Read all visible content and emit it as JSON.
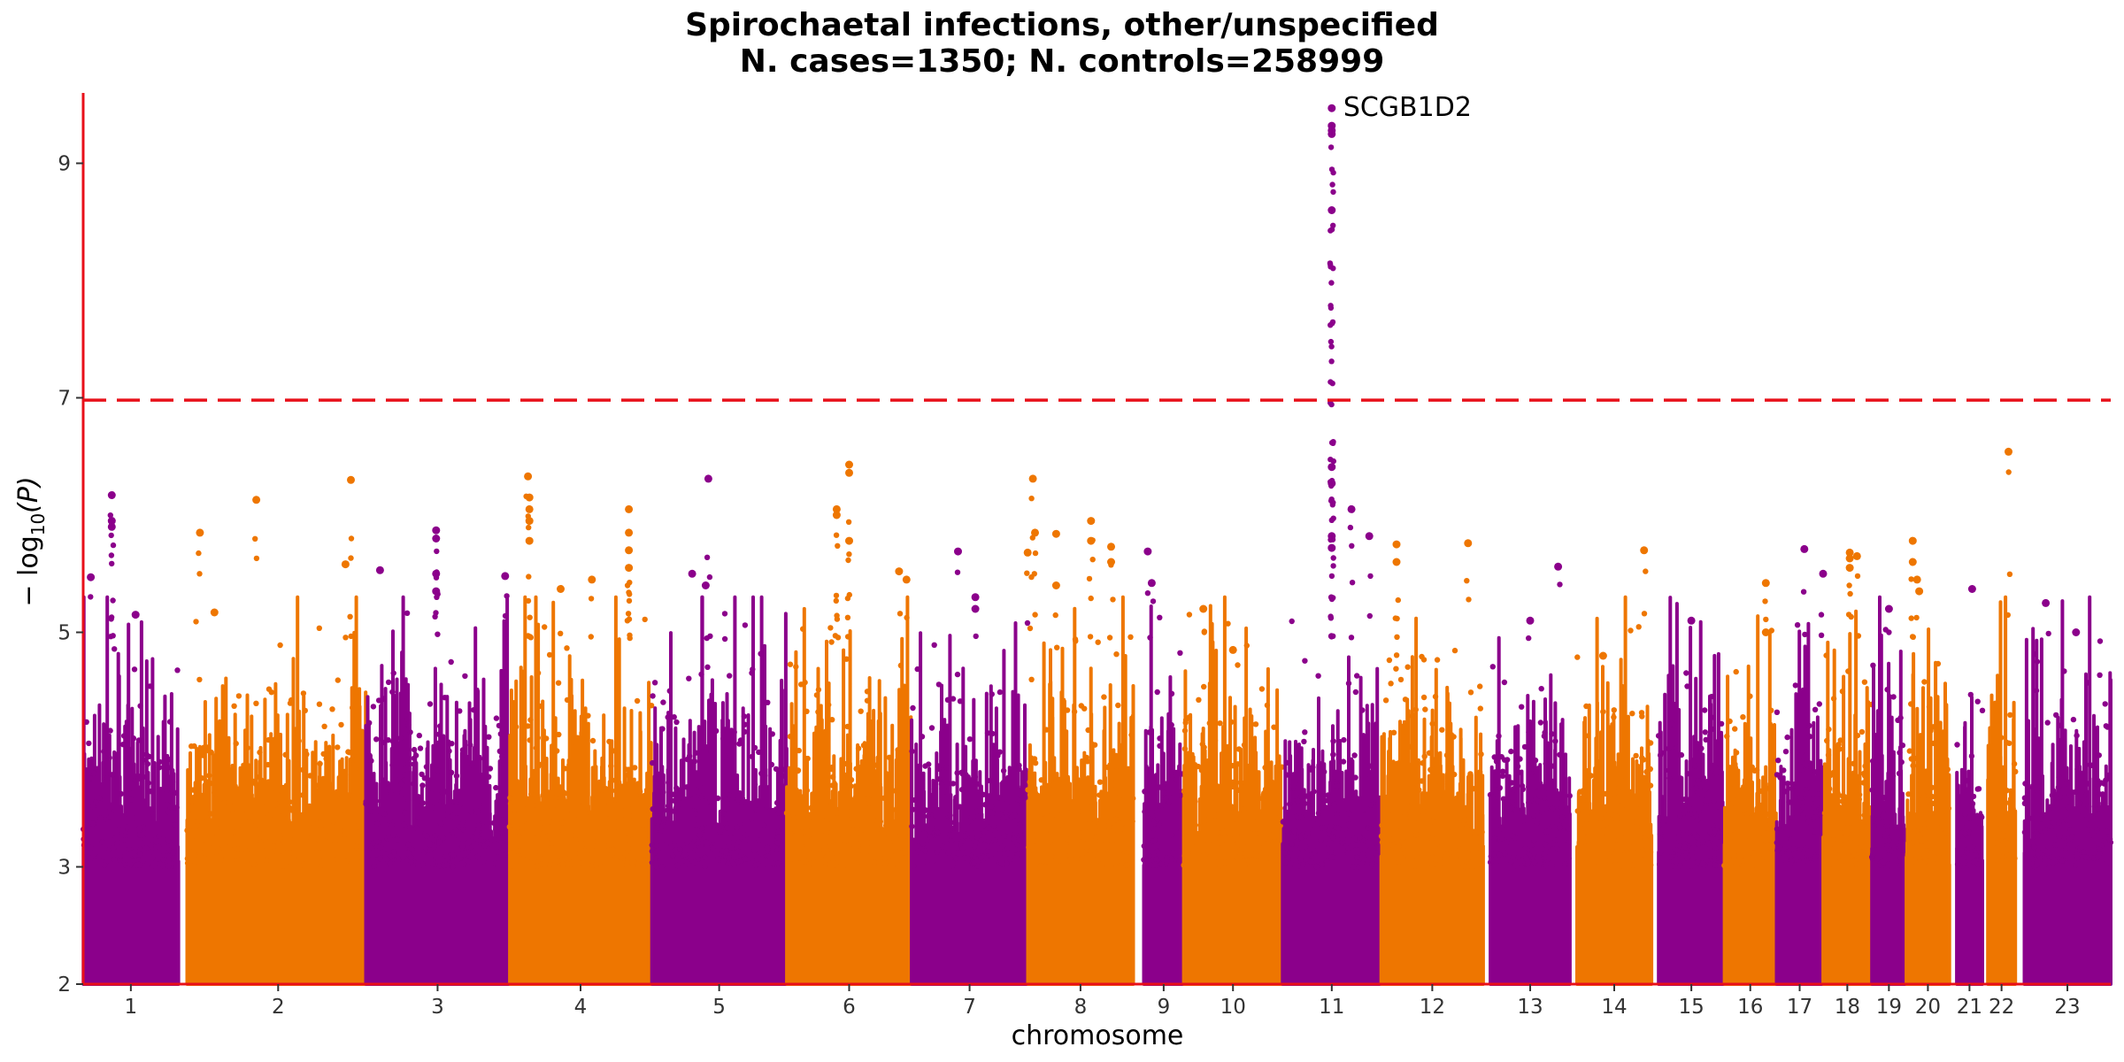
{
  "chart_data": {
    "type": "scatter",
    "title": "Spirochaetal infections, other/unspecified",
    "subtitle": "N. cases=1350; N. controls=258999",
    "xlabel": "chromosome",
    "ylabel_main": "− log",
    "ylabel_sub": "10",
    "ylabel_tail": "(P)",
    "ylim": [
      2,
      9.6
    ],
    "yticks": [
      2,
      3,
      5,
      7,
      9
    ],
    "significance_threshold": 6.98,
    "grid": false,
    "colors": {
      "purple": "#8B008B",
      "orange": "#EE7600",
      "threshold": "#E8101A",
      "axis": "#E8101A"
    },
    "chromosomes": [
      {
        "label": "1",
        "start": 0.0,
        "end": 0.055,
        "color": "purple",
        "peaks": [
          [
            0.3,
            6.17
          ],
          [
            0.3,
            5.95
          ],
          [
            0.3,
            5.9
          ],
          [
            0.08,
            5.47
          ],
          [
            0.55,
            5.15
          ]
        ]
      },
      {
        "label": "2",
        "start": 0.06,
        "end": 0.165,
        "color": "orange",
        "peaks": [
          [
            0.07,
            5.85
          ],
          [
            0.38,
            6.13
          ],
          [
            0.15,
            5.17
          ],
          [
            0.9,
            6.3
          ],
          [
            0.87,
            5.58
          ]
        ]
      },
      {
        "label": "3",
        "start": 0.163,
        "end": 0.246,
        "color": "purple",
        "peaks": [
          [
            0.1,
            5.53
          ],
          [
            0.49,
            5.87
          ],
          [
            0.49,
            5.8
          ],
          [
            0.49,
            5.5
          ],
          [
            0.49,
            5.35
          ],
          [
            0.97,
            5.48
          ]
        ]
      },
      {
        "label": "4",
        "start": 0.246,
        "end": 0.328,
        "color": "orange",
        "peaks": [
          [
            0.13,
            6.33
          ],
          [
            0.14,
            6.15
          ],
          [
            0.14,
            6.05
          ],
          [
            0.14,
            5.95
          ],
          [
            0.14,
            5.78
          ],
          [
            0.36,
            5.37
          ],
          [
            0.58,
            5.45
          ],
          [
            0.84,
            6.05
          ],
          [
            0.84,
            5.85
          ],
          [
            0.84,
            5.7
          ],
          [
            0.84,
            5.55
          ]
        ]
      },
      {
        "label": "5",
        "start": 0.328,
        "end": 0.406,
        "color": "purple",
        "peaks": [
          [
            0.3,
            5.5
          ],
          [
            0.4,
            5.4
          ],
          [
            0.42,
            6.31
          ]
        ]
      },
      {
        "label": "6",
        "start": 0.406,
        "end": 0.478,
        "color": "orange",
        "peaks": [
          [
            0.4,
            6.05
          ],
          [
            0.4,
            6.0
          ],
          [
            0.5,
            6.43
          ],
          [
            0.5,
            6.36
          ],
          [
            0.5,
            5.78
          ],
          [
            0.9,
            5.52
          ],
          [
            0.96,
            5.45
          ]
        ]
      },
      {
        "label": "7",
        "start": 0.478,
        "end": 0.545,
        "color": "purple",
        "peaks": [
          [
            0.4,
            5.69
          ],
          [
            0.55,
            5.3
          ],
          [
            0.55,
            5.2
          ]
        ]
      },
      {
        "label": "8",
        "start": 0.545,
        "end": 0.606,
        "color": "orange",
        "peaks": [
          [
            0.05,
            6.31
          ],
          [
            0.0,
            5.68
          ],
          [
            0.07,
            5.85
          ],
          [
            0.27,
            5.84
          ],
          [
            0.27,
            5.4
          ],
          [
            0.6,
            5.95
          ],
          [
            0.6,
            5.78
          ],
          [
            0.79,
            5.73
          ],
          [
            0.79,
            5.6
          ]
        ]
      },
      {
        "label": "9",
        "start": 0.612,
        "end": 0.635,
        "color": "purple",
        "peaks": [
          [
            0.1,
            5.69
          ],
          [
            0.2,
            5.42
          ]
        ]
      },
      {
        "label": "10",
        "start": 0.635,
        "end": 0.692,
        "color": "orange",
        "peaks": [
          [
            0.2,
            5.2
          ],
          [
            0.5,
            4.85
          ]
        ]
      },
      {
        "label": "11",
        "start": 0.692,
        "end": 0.749,
        "color": "purple",
        "peaks": [
          [
            0.5,
            9.47
          ],
          [
            0.5,
            9.32
          ],
          [
            0.5,
            9.28
          ],
          [
            0.5,
            9.25
          ],
          [
            0.5,
            8.6
          ],
          [
            0.5,
            6.41
          ],
          [
            0.5,
            6.27
          ],
          [
            0.5,
            5.82
          ],
          [
            0.5,
            5.72
          ],
          [
            0.7,
            6.05
          ],
          [
            0.88,
            5.82
          ]
        ]
      },
      {
        "label": "12",
        "start": 0.749,
        "end": 0.808,
        "color": "orange",
        "peaks": [
          [
            0.15,
            5.75
          ],
          [
            0.15,
            5.6
          ],
          [
            0.85,
            5.76
          ]
        ]
      },
      {
        "label": "13",
        "start": 0.812,
        "end": 0.858,
        "color": "purple",
        "peaks": [
          [
            0.85,
            5.56
          ],
          [
            0.5,
            5.1
          ]
        ]
      },
      {
        "label": "14",
        "start": 0.862,
        "end": 0.905,
        "color": "orange",
        "peaks": [
          [
            0.9,
            5.7
          ],
          [
            0.35,
            4.8
          ]
        ]
      },
      {
        "label": "15",
        "start": 0.909,
        "end": 0.947,
        "color": "purple",
        "peaks": [
          [
            0.5,
            5.1
          ]
        ]
      },
      {
        "label": "16",
        "start": 0.947,
        "end": 0.977,
        "color": "orange",
        "peaks": [
          [
            0.8,
            5.42
          ],
          [
            0.8,
            5.0
          ]
        ]
      },
      {
        "label": "17",
        "start": 0.977,
        "end": 1.004,
        "color": "purple",
        "peaks": [
          [
            0.6,
            5.71
          ],
          [
            1.0,
            5.5
          ]
        ]
      },
      {
        "label": "18",
        "start": 1.004,
        "end": 1.032,
        "color": "orange",
        "peaks": [
          [
            0.55,
            5.68
          ],
          [
            0.55,
            5.63
          ],
          [
            0.55,
            5.55
          ],
          [
            0.7,
            5.65
          ]
        ]
      },
      {
        "label": "19",
        "start": 1.032,
        "end": 1.052,
        "color": "purple",
        "peaks": [
          [
            0.5,
            5.2
          ]
        ]
      },
      {
        "label": "20",
        "start": 1.052,
        "end": 1.077,
        "color": "orange",
        "peaks": [
          [
            0.15,
            5.78
          ],
          [
            0.15,
            5.6
          ],
          [
            0.25,
            5.45
          ],
          [
            0.3,
            5.35
          ]
        ]
      },
      {
        "label": "21",
        "start": 1.081,
        "end": 1.096,
        "color": "purple",
        "peaks": [
          [
            0.6,
            5.37
          ]
        ]
      },
      {
        "label": "22",
        "start": 1.099,
        "end": 1.115,
        "color": "orange",
        "peaks": [
          [
            0.75,
            6.54
          ]
        ]
      },
      {
        "label": "23",
        "start": 1.12,
        "end": 1.17,
        "color": "purple",
        "peaks": [
          [
            0.25,
            5.25
          ],
          [
            0.6,
            5.0
          ]
        ]
      }
    ],
    "annotations": [
      {
        "text": "SCGB1D2",
        "chromosome": "11",
        "pos": 0.5,
        "y": 9.47
      }
    ]
  }
}
